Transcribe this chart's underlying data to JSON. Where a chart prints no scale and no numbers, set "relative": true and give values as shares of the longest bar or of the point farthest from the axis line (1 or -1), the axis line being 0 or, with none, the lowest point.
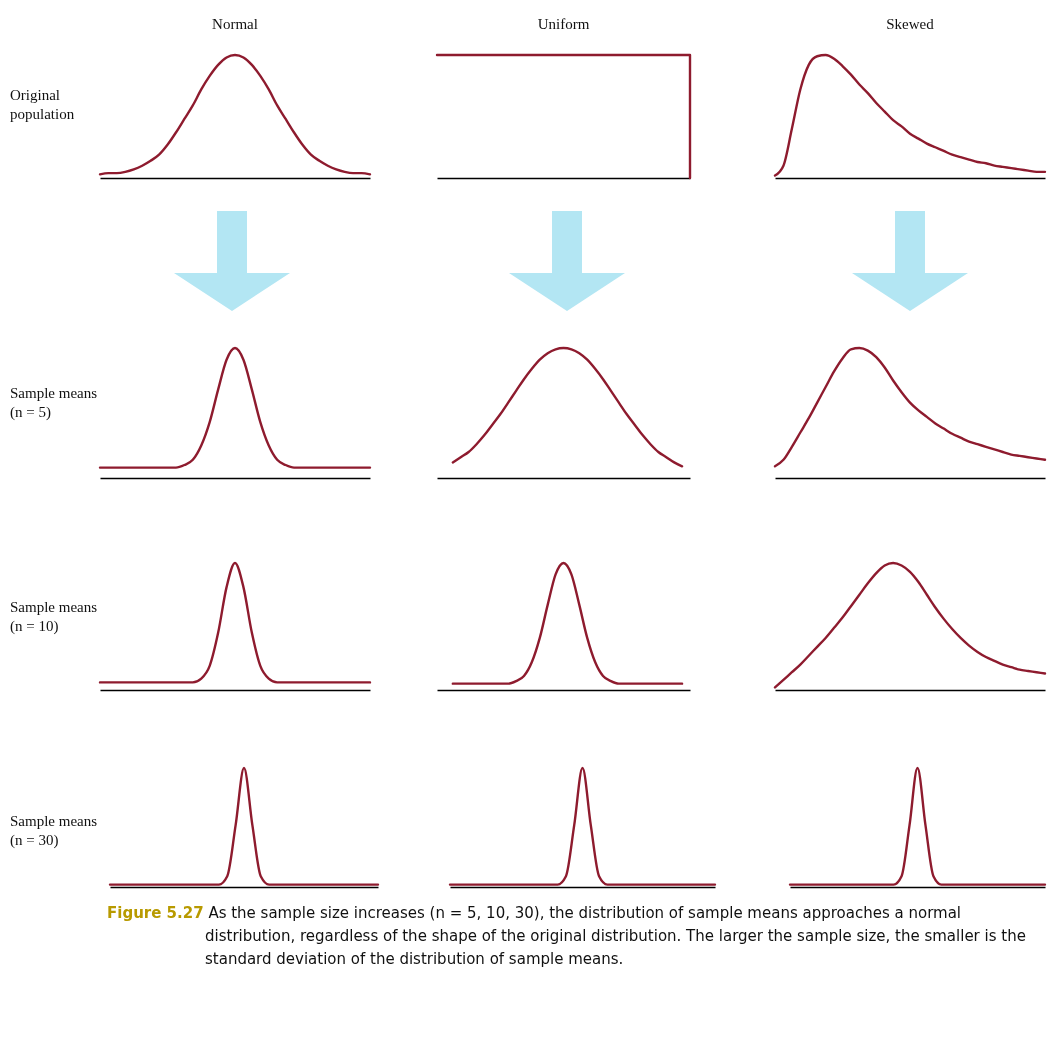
{
  "chart_data": [
    {
      "type": "line",
      "title": "Normal",
      "ylabel": "Original population",
      "relative": true,
      "color": "#8e1b2e",
      "categories": [
        null,
        null,
        null,
        null,
        null,
        null,
        null,
        null,
        null,
        null,
        null,
        null,
        null,
        null,
        null,
        null,
        null,
        null,
        null,
        null,
        null,
        null,
        null,
        null,
        null,
        null,
        null,
        null,
        null,
        null,
        null,
        null,
        null
      ],
      "values": [
        0.03,
        0.04,
        0.04,
        0.05,
        0.07,
        0.1,
        0.14,
        0.19,
        0.27,
        0.37,
        0.48,
        0.59,
        0.72,
        0.83,
        0.92,
        0.98,
        1,
        0.98,
        0.92,
        0.83,
        0.72,
        0.59,
        0.48,
        0.37,
        0.27,
        0.19,
        0.14,
        0.1,
        0.07,
        0.05,
        0.04,
        0.04,
        0.03
      ]
    },
    {
      "type": "step",
      "title": "Uniform",
      "relative": true,
      "color": "#8e1b2e",
      "categories": [
        null,
        null,
        null,
        null,
        null,
        null,
        null,
        null,
        null,
        null,
        null,
        null,
        null,
        null,
        null,
        null,
        null,
        null,
        null,
        null,
        null,
        null,
        null,
        null,
        null,
        null,
        null,
        null,
        null,
        null,
        null,
        null,
        null
      ],
      "values": [
        1,
        1,
        1,
        1,
        1,
        1,
        1,
        1,
        1,
        1,
        1,
        1,
        1,
        1,
        1,
        1,
        1,
        1,
        1,
        1,
        1,
        1,
        1,
        1,
        1,
        1,
        1,
        1,
        1,
        1,
        1,
        1,
        0
      ]
    },
    {
      "type": "line",
      "title": "Skewed",
      "relative": true,
      "color": "#8e1b2e",
      "categories": [
        null,
        null,
        null,
        null,
        null,
        null,
        null,
        null,
        null,
        null,
        null,
        null,
        null,
        null,
        null,
        null,
        null,
        null,
        null,
        null,
        null,
        null,
        null,
        null,
        null,
        null,
        null,
        null,
        null,
        null,
        null,
        null,
        null
      ],
      "values": [
        0.02,
        0.1,
        0.4,
        0.72,
        0.92,
        0.99,
        1,
        0.97,
        0.91,
        0.84,
        0.76,
        0.69,
        0.61,
        0.54,
        0.47,
        0.42,
        0.36,
        0.32,
        0.28,
        0.25,
        0.22,
        0.19,
        0.17,
        0.15,
        0.13,
        0.12,
        0.1,
        0.09,
        0.08,
        0.07,
        0.06,
        0.05,
        0.05
      ]
    },
    {
      "type": "line",
      "ylabel": "Sample means (n = 5)",
      "relative": true,
      "color": "#8e1b2e",
      "categories": [
        null,
        null,
        null,
        null,
        null,
        null,
        null,
        null,
        null,
        null,
        null,
        null,
        null,
        null,
        null,
        null,
        null,
        null,
        null,
        null,
        null,
        null,
        null,
        null,
        null,
        null,
        null,
        null,
        null,
        null,
        null,
        null,
        null
      ],
      "values": [
        0.08,
        0.08,
        0.08,
        0.08,
        0.08,
        0.08,
        0.08,
        0.08,
        0.08,
        0.08,
        0.1,
        0.14,
        0.25,
        0.43,
        0.68,
        0.91,
        1,
        0.91,
        0.68,
        0.43,
        0.25,
        0.14,
        0.1,
        0.08,
        0.08,
        0.08,
        0.08,
        0.08,
        0.08,
        0.08,
        0.08,
        0.08,
        0.08
      ]
    },
    {
      "type": "line",
      "relative": true,
      "color": "#8e1b2e",
      "categories": [
        null,
        null,
        null,
        null,
        null,
        null,
        null,
        null,
        null,
        null,
        null,
        null,
        null,
        null,
        null,
        null,
        null,
        null,
        null,
        null,
        null,
        null,
        null,
        null,
        null,
        null,
        null,
        null,
        null,
        null,
        null,
        null,
        null
      ],
      "values": [
        null,
        null,
        0.12,
        0.16,
        0.2,
        0.26,
        0.33,
        0.41,
        0.49,
        0.58,
        0.67,
        0.76,
        0.84,
        0.91,
        0.96,
        0.99,
        1,
        0.99,
        0.96,
        0.91,
        0.84,
        0.76,
        0.67,
        0.58,
        0.49,
        0.41,
        0.33,
        0.26,
        0.2,
        0.16,
        0.12,
        0.09,
        null
      ]
    },
    {
      "type": "line",
      "relative": true,
      "color": "#8e1b2e",
      "categories": [
        null,
        null,
        null,
        null,
        null,
        null,
        null,
        null,
        null,
        null,
        null,
        null,
        null,
        null,
        null,
        null,
        null,
        null,
        null,
        null,
        null,
        null,
        null,
        null,
        null,
        null,
        null,
        null,
        null,
        null,
        null,
        null,
        null
      ],
      "values": [
        0.09,
        0.14,
        0.24,
        0.35,
        0.46,
        0.58,
        0.7,
        0.82,
        0.92,
        0.99,
        1,
        0.98,
        0.93,
        0.85,
        0.75,
        0.66,
        0.58,
        0.52,
        0.47,
        0.42,
        0.38,
        0.34,
        0.31,
        0.28,
        0.26,
        0.24,
        0.22,
        0.2,
        0.18,
        0.17,
        0.16,
        0.15,
        0.14
      ]
    },
    {
      "type": "line",
      "ylabel": "Sample means (n = 10)",
      "relative": true,
      "color": "#8e1b2e",
      "categories": [
        null,
        null,
        null,
        null,
        null,
        null,
        null,
        null,
        null,
        null,
        null,
        null,
        null,
        null,
        null,
        null,
        null,
        null,
        null,
        null,
        null,
        null,
        null,
        null,
        null,
        null,
        null,
        null,
        null,
        null,
        null,
        null,
        null
      ],
      "values": [
        0.06,
        0.06,
        0.06,
        0.06,
        0.06,
        0.06,
        0.06,
        0.06,
        0.06,
        0.06,
        0.06,
        0.06,
        0.09,
        0.19,
        0.45,
        0.81,
        1,
        0.81,
        0.45,
        0.19,
        0.09,
        0.06,
        0.06,
        0.06,
        0.06,
        0.06,
        0.06,
        0.06,
        0.06,
        0.06,
        0.06,
        0.06,
        0.06
      ]
    },
    {
      "type": "line",
      "relative": true,
      "color": "#8e1b2e",
      "categories": [
        null,
        null,
        null,
        null,
        null,
        null,
        null,
        null,
        null,
        null,
        null,
        null,
        null,
        null,
        null,
        null,
        null,
        null,
        null,
        null,
        null,
        null,
        null,
        null,
        null,
        null,
        null,
        null,
        null,
        null,
        null,
        null,
        null
      ],
      "values": [
        null,
        null,
        0.05,
        0.05,
        0.05,
        0.05,
        0.05,
        0.05,
        0.05,
        0.05,
        0.07,
        0.11,
        0.22,
        0.41,
        0.67,
        0.91,
        1,
        0.91,
        0.67,
        0.41,
        0.22,
        0.11,
        0.07,
        0.05,
        0.05,
        0.05,
        0.05,
        0.05,
        0.05,
        0.05,
        0.05,
        0.05,
        null
      ]
    },
    {
      "type": "line",
      "relative": true,
      "color": "#8e1b2e",
      "categories": [
        null,
        null,
        null,
        null,
        null,
        null,
        null,
        null,
        null,
        null,
        null,
        null,
        null,
        null,
        null,
        null,
        null,
        null,
        null,
        null,
        null,
        null,
        null,
        null,
        null,
        null,
        null,
        null,
        null,
        null,
        null,
        null,
        null
      ],
      "values": [
        0.02,
        0.08,
        0.14,
        0.2,
        0.27,
        0.34,
        0.41,
        0.49,
        0.57,
        0.66,
        0.75,
        0.84,
        0.92,
        0.98,
        1,
        0.98,
        0.93,
        0.85,
        0.75,
        0.65,
        0.56,
        0.48,
        0.41,
        0.35,
        0.3,
        0.26,
        0.23,
        0.2,
        0.18,
        0.16,
        0.15,
        0.14,
        0.13
      ]
    },
    {
      "type": "line",
      "ylabel": "Sample means (n = 30)",
      "relative": true,
      "color": "#8e1b2e",
      "categories": [
        null,
        null,
        null,
        null,
        null,
        null,
        null,
        null,
        null,
        null,
        null,
        null,
        null,
        null,
        null,
        null,
        null,
        null,
        null,
        null,
        null,
        null,
        null,
        null,
        null,
        null,
        null,
        null,
        null,
        null,
        null,
        null,
        null
      ],
      "values": [
        0.02,
        0.02,
        0.02,
        0.02,
        0.02,
        0.02,
        0.02,
        0.02,
        0.02,
        0.02,
        0.02,
        0.02,
        0.02,
        0.02,
        0.09,
        0.52,
        1,
        0.52,
        0.09,
        0.02,
        0.02,
        0.02,
        0.02,
        0.02,
        0.02,
        0.02,
        0.02,
        0.02,
        0.02,
        0.02,
        0.02,
        0.02,
        0.02
      ]
    },
    {
      "type": "line",
      "relative": true,
      "color": "#8e1b2e",
      "categories": [
        null,
        null,
        null,
        null,
        null,
        null,
        null,
        null,
        null,
        null,
        null,
        null,
        null,
        null,
        null,
        null,
        null,
        null,
        null,
        null,
        null,
        null,
        null,
        null,
        null,
        null,
        null,
        null,
        null,
        null,
        null,
        null,
        null
      ],
      "values": [
        0.02,
        0.02,
        0.02,
        0.02,
        0.02,
        0.02,
        0.02,
        0.02,
        0.02,
        0.02,
        0.02,
        0.02,
        0.02,
        0.02,
        0.09,
        0.52,
        1,
        0.52,
        0.09,
        0.02,
        0.02,
        0.02,
        0.02,
        0.02,
        0.02,
        0.02,
        0.02,
        0.02,
        0.02,
        0.02,
        0.02,
        0.02,
        0.02
      ]
    },
    {
      "type": "line",
      "relative": true,
      "color": "#8e1b2e",
      "categories": [
        null,
        null,
        null,
        null,
        null,
        null,
        null,
        null,
        null,
        null,
        null,
        null,
        null,
        null,
        null,
        null,
        null,
        null,
        null,
        null,
        null,
        null,
        null,
        null,
        null,
        null,
        null,
        null,
        null,
        null,
        null,
        null,
        null
      ],
      "values": [
        0.02,
        0.02,
        0.02,
        0.02,
        0.02,
        0.02,
        0.02,
        0.02,
        0.02,
        0.02,
        0.02,
        0.02,
        0.02,
        0.02,
        0.09,
        0.52,
        1,
        0.52,
        0.09,
        0.02,
        0.02,
        0.02,
        0.02,
        0.02,
        0.02,
        0.02,
        0.02,
        0.02,
        0.02,
        0.02,
        0.02,
        0.02,
        0.02
      ],
      "annotations": [
        "Figure 5.27 As the sample size increases (n = 5, 10, 30), the distribution of sample means approaches a normal distribution, regardless of the shape of the original distribution. The larger the sample size, the smaller is the standard deviation of the distribution of sample means."
      ]
    }
  ]
}
